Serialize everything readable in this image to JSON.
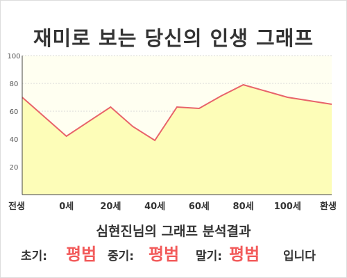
{
  "title": "재미로 보는 당신의 인생 그래프",
  "chart_data": {
    "type": "area",
    "title": "",
    "xlabel": "",
    "ylabel": "",
    "categories": [
      "전생",
      "0세",
      "20세",
      "40세",
      "60세",
      "80세",
      "100세",
      "환생"
    ],
    "x_ticks": [
      0,
      1,
      2,
      3,
      4,
      5,
      6,
      7
    ],
    "x": [
      0,
      1,
      2,
      2.5,
      3,
      3.5,
      4,
      4.5,
      5,
      6,
      7
    ],
    "values": [
      70,
      42,
      63,
      49,
      39,
      63,
      62,
      71,
      79,
      70,
      65
    ],
    "ylim": [
      0,
      100
    ],
    "yticks": [
      20,
      40,
      60,
      80,
      100
    ],
    "grid": true,
    "colors": {
      "line": "#e8636a",
      "fill": "#fdfdb8",
      "bg": "#fffff1",
      "grid": "#d8d8d8"
    }
  },
  "result": {
    "heading": "심현진님의 그래프 분석결과",
    "early_label": "초기:",
    "early_value": "평범",
    "middle_label": "중기:",
    "middle_value": "평범",
    "late_label": "말기:",
    "late_value": "평범",
    "suffix": "입니다"
  }
}
